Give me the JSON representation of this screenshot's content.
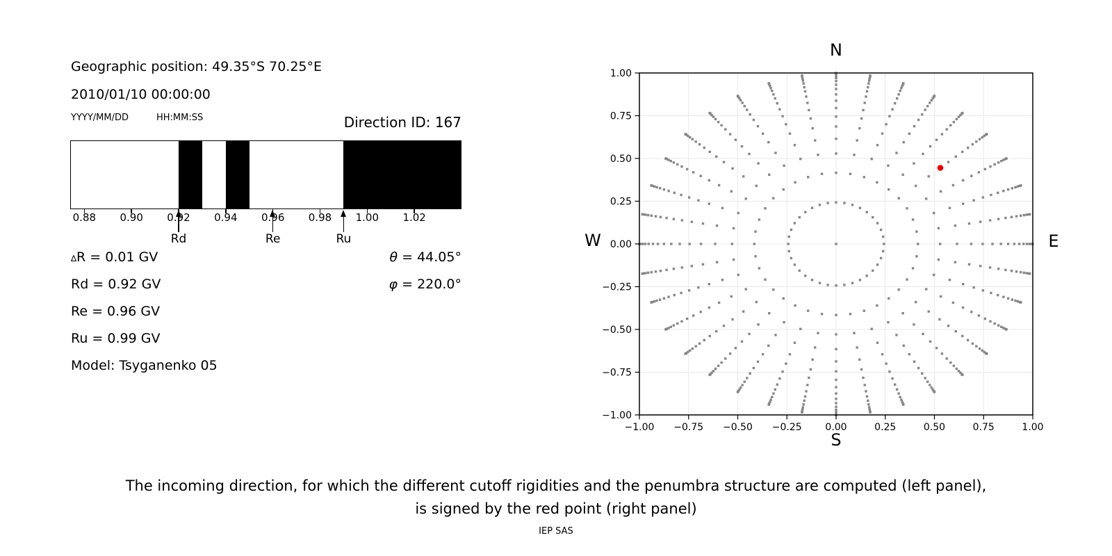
{
  "figure": {
    "header": {
      "position": "Geographic position: 49.35°S 70.25°E",
      "datetime": "2010/01/10 00:00:00",
      "date_format": "YYYY/MM/DD",
      "time_format": "HH:MM:SS",
      "direction_id": "Direction ID: 167"
    },
    "values": {
      "delta_symbol": "∆",
      "delta_rest": "R = 0.01 GV",
      "rd": "Rd = 0.92 GV",
      "re": "Re = 0.96 GV",
      "ru": "Ru = 0.99 GV",
      "model": "Model: Tsyganenko 05",
      "theta_symbol": "θ",
      "theta_rest": " = 44.05°",
      "phi_symbol": "φ",
      "phi_rest": " = 220.0°"
    },
    "compass": {
      "north": "N",
      "south": "S",
      "east": "E",
      "west": "W"
    },
    "caption": {
      "line1": "The incoming direction, for which the different cutoff rigidities and the penumbra structure are computed (left panel),",
      "line2": "is signed by the red point (right panel)",
      "credit": "IEP SAS"
    }
  },
  "chart_data": [
    {
      "type": "bar",
      "panel": "left-penumbra",
      "title": "Direction ID: 167",
      "x_range": [
        0.874,
        1.04
      ],
      "x_ticks": [
        0.88,
        0.9,
        0.92,
        0.94,
        0.96,
        0.98,
        1.0,
        1.02
      ],
      "x_tick_labels": [
        "0.88",
        "0.90",
        "0.92",
        "0.94",
        "0.96",
        "0.98",
        "1.00",
        "1.02"
      ],
      "black_bands_gv": [
        [
          0.92,
          0.93
        ],
        [
          0.94,
          0.95
        ],
        [
          0.99,
          1.04
        ]
      ],
      "band_color": "#000000",
      "arrows": [
        {
          "label": "Rd",
          "x_gv": 0.92
        },
        {
          "label": "Re",
          "x_gv": 0.96
        },
        {
          "label": "Ru",
          "x_gv": 0.99
        }
      ],
      "values": {
        "delta_R_gv": 0.01,
        "Rd_gv": 0.92,
        "Re_gv": 0.96,
        "Ru_gv": 0.99,
        "theta_deg": 44.05,
        "phi_deg": 220.0,
        "model": "Tsyganenko 05"
      }
    },
    {
      "type": "scatter",
      "panel": "right-direction-map",
      "x_range": [
        -1.0,
        1.0
      ],
      "y_range": [
        -1.0,
        1.0
      ],
      "x_ticks": [
        -1.0,
        -0.75,
        -0.5,
        -0.25,
        0.0,
        0.25,
        0.5,
        0.75,
        1.0
      ],
      "x_tick_labels": [
        "−1.00",
        "−0.75",
        "−0.50",
        "−0.25",
        "0.00",
        "0.25",
        "0.50",
        "0.75",
        "1.00"
      ],
      "y_ticks": [
        1.0,
        0.75,
        0.5,
        0.25,
        0.0,
        -0.25,
        -0.5,
        -0.75,
        -1.0
      ],
      "y_tick_labels": [
        "1.00",
        "0.75",
        "0.50",
        "0.25",
        "0.00",
        "−0.25",
        "−0.50",
        "−0.75",
        "−1.00"
      ],
      "grid": true,
      "grid_color": "#e8e8e8",
      "compass": {
        "top": "N",
        "bottom": "S",
        "left": "W",
        "right": "E"
      },
      "direction_grid": {
        "azimuth_count": 36,
        "azimuth_step_deg": 10,
        "zenith_radii": [
          0.243,
          0.416,
          0.529,
          0.615,
          0.687,
          0.745,
          0.795,
          0.838,
          0.875,
          0.906,
          0.931,
          0.953,
          0.97,
          0.983,
          0.993,
          0.998,
          1.0
        ],
        "center_dot": true,
        "dot_color": "#878787"
      },
      "red_point": {
        "x": 0.53,
        "y": 0.445,
        "color": "#e50000"
      }
    }
  ]
}
